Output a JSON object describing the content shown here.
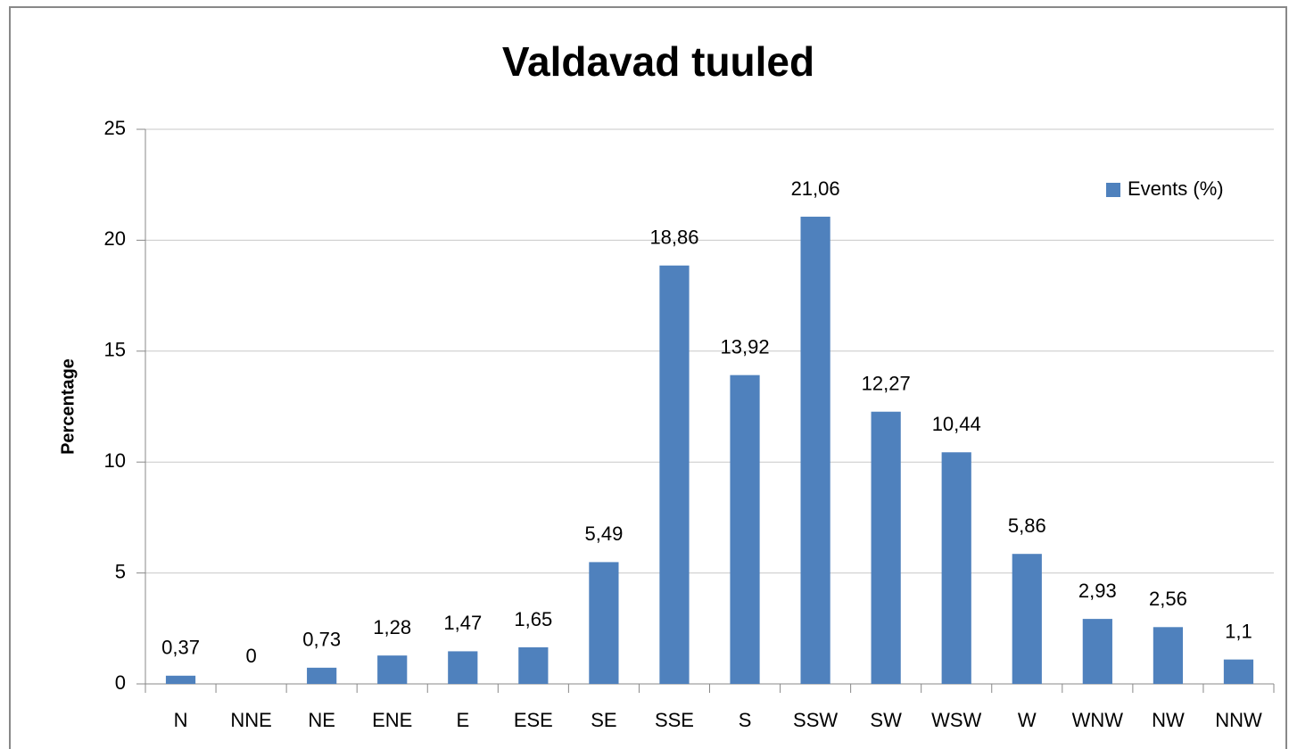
{
  "chart_data": {
    "type": "bar",
    "title": "Valdavad tuuled",
    "y_label": "Percentage",
    "categories": [
      "N",
      "NNE",
      "NE",
      "ENE",
      "E",
      "ESE",
      "SE",
      "SSE",
      "S",
      "SSW",
      "SW",
      "WSW",
      "W",
      "WNW",
      "NW",
      "NNW"
    ],
    "series": [
      {
        "name": "Events (%)",
        "color": "#4f81bd",
        "values": [
          0.37,
          0,
          0.73,
          1.28,
          1.47,
          1.65,
          5.49,
          18.86,
          13.92,
          21.06,
          12.27,
          10.44,
          5.86,
          2.93,
          2.56,
          1.1
        ],
        "value_labels": [
          "0,37",
          "0",
          "0,73",
          "1,28",
          "1,47",
          "1,65",
          "5,49",
          "18,86",
          "13,92",
          "21,06",
          "12,27",
          "10,44",
          "5,86",
          "2,93",
          "2,56",
          "1,1"
        ]
      }
    ],
    "ylim": [
      0,
      25
    ],
    "yticks": [
      0,
      5,
      10,
      15,
      20,
      25
    ],
    "grid": true,
    "legend": "top-right"
  }
}
